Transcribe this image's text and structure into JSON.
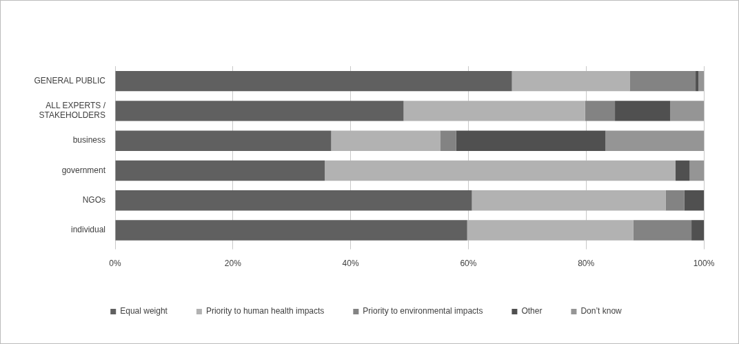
{
  "chart_data": {
    "type": "bar",
    "orientation": "horizontal",
    "stacked": true,
    "categories": [
      "GENERAL PUBLIC",
      "ALL EXPERTS / STAKEHOLDERS",
      "business",
      "government",
      "NGOs",
      "individual"
    ],
    "series": [
      {
        "name": "Equal weight",
        "color": "#606060",
        "values": [
          67.4,
          49.0,
          36.7,
          35.6,
          60.6,
          59.8
        ]
      },
      {
        "name": "Priority to human health impacts",
        "color": "#b2b2b2",
        "values": [
          20.0,
          30.8,
          18.5,
          59.6,
          32.9,
          28.2
        ]
      },
      {
        "name": "Priority to environmental impacts",
        "color": "#838383",
        "values": [
          11.2,
          5.1,
          2.7,
          0,
          3.2,
          9.9
        ]
      },
      {
        "name": "Other",
        "color": "#505050",
        "values": [
          0.5,
          9.4,
          25.4,
          2.4,
          3.3,
          2.1
        ]
      },
      {
        "name": "Don’t know",
        "color": "#959595",
        "values": [
          0.9,
          5.7,
          16.7,
          2.4,
          0,
          0
        ]
      }
    ],
    "xlim": [
      0,
      100
    ],
    "xticks": [
      {
        "value": 0,
        "label": "0%"
      },
      {
        "value": 20,
        "label": "20%"
      },
      {
        "value": 40,
        "label": "40%"
      },
      {
        "value": 60,
        "label": "60%"
      },
      {
        "value": 80,
        "label": "80%"
      },
      {
        "value": 100,
        "label": "100%"
      }
    ],
    "grid": "x",
    "legend": "bottom"
  }
}
